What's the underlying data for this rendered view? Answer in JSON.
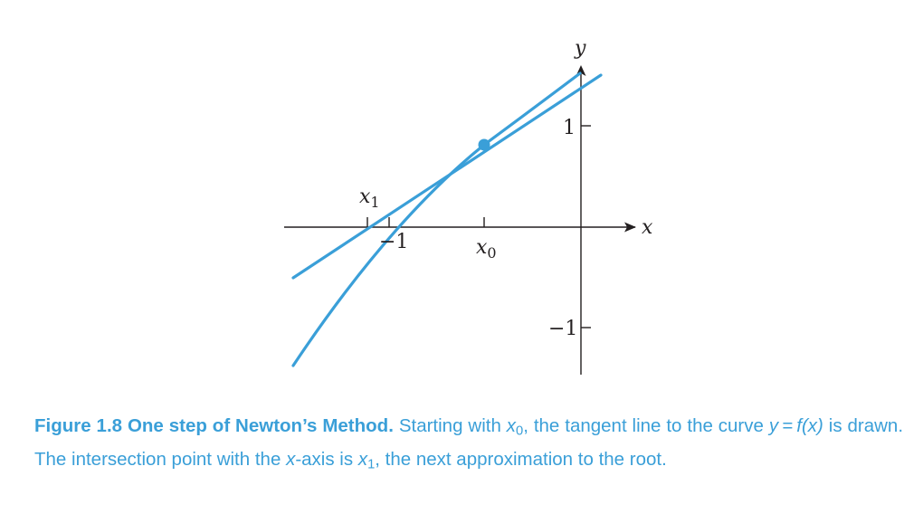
{
  "diagram": {
    "axis_labels": {
      "x": "x",
      "y": "y"
    },
    "tick_labels": {
      "y_pos": "1",
      "y_neg": "−1",
      "x_neg": "−1"
    },
    "point_labels": {
      "x0": "x",
      "x0_sub": "0",
      "x1": "x",
      "x1_sub": "1"
    },
    "colors": {
      "curve": "#3a9fd8",
      "axes": "#231f20"
    }
  },
  "caption": {
    "label": "Figure 1.8",
    "title": "One step of Newton’s Method.",
    "t1": "Starting with",
    "x0_var": "x",
    "x0_sub": "0",
    "t2": ", the tangent line to the curve",
    "eq": "y = f(x)",
    "t3": "is drawn. The intersection point with the",
    "xaxis_var": "x",
    "t4": "-axis is",
    "x1_var": "x",
    "x1_sub": "1",
    "t5": ", the next approximation to the root."
  }
}
